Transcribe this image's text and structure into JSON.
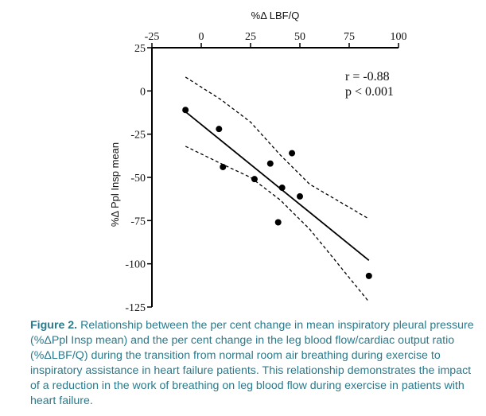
{
  "chart_data": {
    "type": "scatter",
    "x_axis": {
      "label": "%Δ LBF/Q",
      "position": "top",
      "range": [
        -25,
        100
      ],
      "ticks": [
        -25,
        0,
        25,
        50,
        75,
        100
      ],
      "tick_labels": [
        "-25",
        "0",
        "25",
        "50",
        "75",
        "100"
      ]
    },
    "y_axis": {
      "label": "%Δ Ppl Insp mean",
      "range": [
        -125,
        25
      ],
      "ticks": [
        25,
        0,
        -25,
        -50,
        -75,
        -100,
        -125
      ],
      "tick_labels": [
        "25",
        "0",
        "-25",
        "-50",
        "-75",
        "-100",
        "-125"
      ]
    },
    "points": [
      {
        "x": -8,
        "y": -11
      },
      {
        "x": 9,
        "y": -22
      },
      {
        "x": 11,
        "y": -44
      },
      {
        "x": 27,
        "y": -51
      },
      {
        "x": 35,
        "y": -42
      },
      {
        "x": 41,
        "y": -56
      },
      {
        "x": 39,
        "y": -76
      },
      {
        "x": 46,
        "y": -36
      },
      {
        "x": 50,
        "y": -61
      },
      {
        "x": 85,
        "y": -107
      }
    ],
    "regression": {
      "x1": -8,
      "y1": -12,
      "x2": 85,
      "y2": -98
    },
    "ci_upper": [
      {
        "x": -8,
        "y": 8
      },
      {
        "x": 10,
        "y": -5
      },
      {
        "x": 25,
        "y": -18
      },
      {
        "x": 40,
        "y": -37
      },
      {
        "x": 55,
        "y": -54
      },
      {
        "x": 70,
        "y": -64
      },
      {
        "x": 85,
        "y": -74
      }
    ],
    "ci_lower": [
      {
        "x": -8,
        "y": -32
      },
      {
        "x": 10,
        "y": -42
      },
      {
        "x": 25,
        "y": -50
      },
      {
        "x": 40,
        "y": -63
      },
      {
        "x": 55,
        "y": -80
      },
      {
        "x": 70,
        "y": -101
      },
      {
        "x": 85,
        "y": -122
      }
    ],
    "annotations": {
      "r": "r = -0.88",
      "p": "p < 0.001"
    }
  },
  "caption": {
    "figure_label": "Figure 2.",
    "text": "Relationship between the per cent change in mean inspiratory pleural pressure (%ΔPpl Insp mean) and the per cent change in the leg blood flow/cardiac output ratio (%ΔLBF/Q) during the transition from normal room air breathing during exercise to inspiratory assistance in heart failure patients. This relationship demonstrates the impact of a reduction in the work of breathing on leg blood flow during exercise in patients with heart failure."
  },
  "colors": {
    "caption": "#2a7a8c",
    "marks": "#000000"
  }
}
